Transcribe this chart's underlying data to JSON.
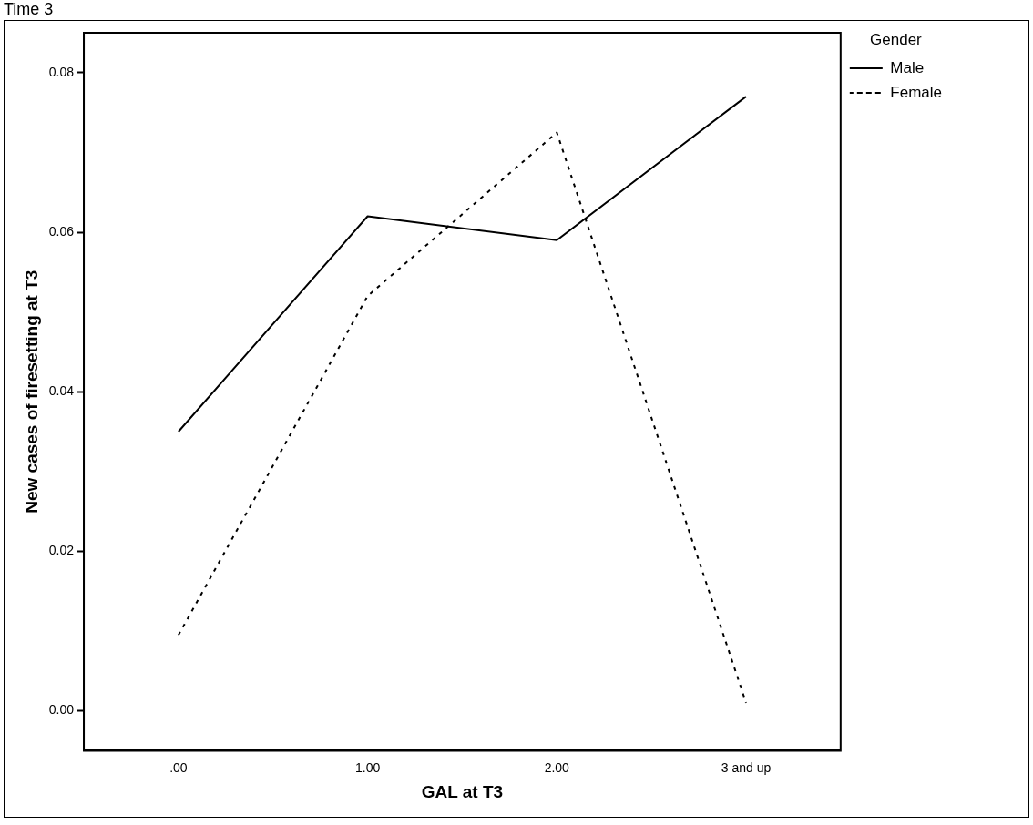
{
  "chart_data": {
    "type": "line",
    "title": "Time 3",
    "xlabel": "GAL at T3",
    "ylabel": "New cases of firesetting at T3",
    "legend_title": "Gender",
    "categories": [
      ".00",
      "1.00",
      "2.00",
      "3 and up"
    ],
    "series": [
      {
        "name": "Male",
        "color": "#000000",
        "line_style": "solid",
        "values": [
          0.035,
          0.062,
          0.059,
          0.077
        ]
      },
      {
        "name": "Female",
        "color": "#000000",
        "line_style": "dotted",
        "values": [
          0.0095,
          0.052,
          0.0725,
          0.001
        ]
      }
    ],
    "ylim": [
      -0.005,
      0.085
    ],
    "yticks": [
      {
        "value": 0,
        "label": "0.00"
      },
      {
        "value": 0.02,
        "label": "0.02"
      },
      {
        "value": 0.04,
        "label": "0.04"
      },
      {
        "value": 0.06,
        "label": "0.06"
      },
      {
        "value": 0.08,
        "label": "0.08"
      }
    ],
    "grid": false,
    "legend": "top right",
    "marker": "none"
  }
}
